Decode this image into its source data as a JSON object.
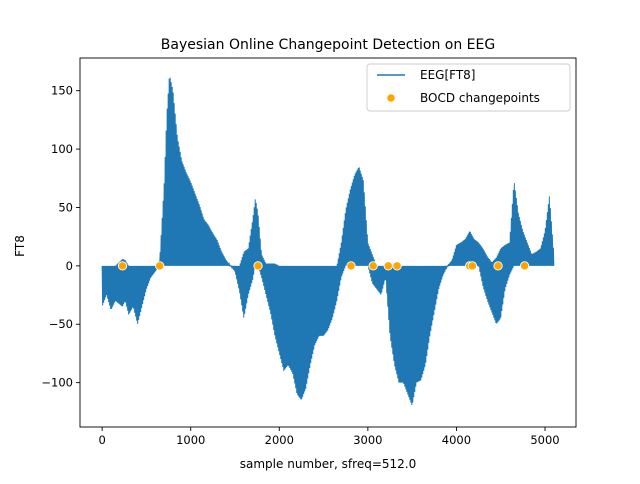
{
  "chart_data": {
    "type": "line",
    "title": "Bayesian Online Changepoint Detection on EEG",
    "xlabel": "sample number, sfreq=512.0",
    "ylabel": "FT8",
    "xlim": [
      -250,
      5350
    ],
    "ylim": [
      -138,
      178
    ],
    "xticks": [
      0,
      1000,
      2000,
      3000,
      4000,
      5000
    ],
    "yticks": [
      -100,
      -50,
      0,
      50,
      100,
      150
    ],
    "grid": false,
    "legend_position": "top-right",
    "series": [
      {
        "name": "EEG[FT8]",
        "kind": "line",
        "color": "#1f77b4",
        "envelope": {
          "x": [
            0,
            50,
            100,
            150,
            230,
            260,
            300,
            350,
            400,
            450,
            500,
            550,
            600,
            650,
            700,
            730,
            760,
            800,
            850,
            900,
            950,
            1000,
            1050,
            1100,
            1150,
            1200,
            1250,
            1300,
            1350,
            1400,
            1450,
            1500,
            1550,
            1600,
            1650,
            1700,
            1730,
            1760,
            1800,
            1850,
            1900,
            1950,
            2000,
            2050,
            2100,
            2150,
            2200,
            2250,
            2300,
            2350,
            2400,
            2450,
            2500,
            2550,
            2600,
            2650,
            2700,
            2750,
            2800,
            2850,
            2900,
            2950,
            3000,
            3050,
            3100,
            3150,
            3200,
            3250,
            3300,
            3350,
            3400,
            3450,
            3500,
            3550,
            3600,
            3650,
            3700,
            3750,
            3800,
            3850,
            3900,
            3950,
            4000,
            4050,
            4100,
            4150,
            4200,
            4250,
            4300,
            4350,
            4400,
            4450,
            4500,
            4550,
            4600,
            4650,
            4700,
            4750,
            4800,
            4850,
            4900,
            4950,
            5000,
            5050,
            5100
          ],
          "upper": [
            0,
            0,
            0,
            0,
            6,
            5,
            0,
            0,
            0,
            0,
            0,
            0,
            0,
            5,
            70,
            130,
            164,
            150,
            110,
            90,
            80,
            72,
            62,
            52,
            40,
            35,
            28,
            22,
            12,
            5,
            0,
            0,
            0,
            12,
            15,
            40,
            58,
            45,
            10,
            2,
            2,
            2,
            0,
            0,
            0,
            0,
            0,
            0,
            0,
            0,
            0,
            0,
            0,
            0,
            0,
            0,
            20,
            48,
            65,
            78,
            85,
            73,
            20,
            10,
            0,
            0,
            0,
            0,
            0,
            0,
            0,
            0,
            0,
            0,
            0,
            0,
            0,
            0,
            0,
            0,
            0,
            5,
            18,
            20,
            23,
            30,
            23,
            20,
            15,
            8,
            3,
            7,
            15,
            18,
            20,
            73,
            45,
            30,
            20,
            10,
            12,
            15,
            30,
            60,
            10
          ],
          "lower": [
            -35,
            -25,
            -38,
            -30,
            -35,
            -30,
            -42,
            -35,
            -50,
            -35,
            -20,
            -10,
            -5,
            0,
            0,
            0,
            0,
            0,
            0,
            0,
            0,
            0,
            0,
            0,
            0,
            0,
            0,
            0,
            0,
            0,
            0,
            -5,
            -22,
            -45,
            -25,
            -12,
            0,
            0,
            -10,
            -25,
            -40,
            -60,
            -75,
            -90,
            -85,
            -92,
            -110,
            -115,
            -105,
            -85,
            -68,
            -60,
            -60,
            -55,
            -45,
            -30,
            -10,
            0,
            0,
            0,
            0,
            0,
            0,
            -15,
            -20,
            -25,
            -10,
            -60,
            -85,
            -100,
            -100,
            -110,
            -120,
            -100,
            -98,
            -85,
            -60,
            -40,
            -20,
            -8,
            0,
            0,
            0,
            0,
            0,
            0,
            0,
            0,
            -18,
            -30,
            -40,
            -50,
            -45,
            -20,
            -8,
            0,
            0,
            0,
            0,
            0,
            0,
            0,
            0,
            0,
            0
          ]
        }
      },
      {
        "name": "BOCD changepoints",
        "kind": "scatter",
        "color": "#ffa500",
        "x": [
          230,
          650,
          1760,
          2810,
          3060,
          3230,
          3330,
          4150,
          4180,
          4470,
          4770
        ],
        "y": [
          0,
          0,
          0,
          0,
          0,
          0,
          0,
          0,
          0,
          0,
          0
        ]
      }
    ]
  }
}
